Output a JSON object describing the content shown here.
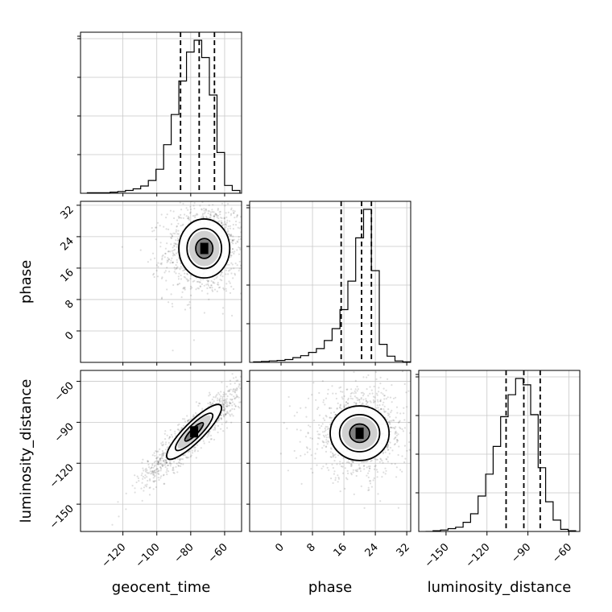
{
  "chart_data": {
    "type": "corner",
    "parameters": [
      "geocent_time",
      "phase",
      "luminosity_distance"
    ],
    "axis_labels": {
      "x": [
        "geocent_time",
        "phase",
        "luminosity_distance"
      ],
      "y": [
        "",
        "phase",
        "luminosity_distance"
      ]
    },
    "ranges": {
      "geocent_time": [
        -145,
        -50
      ],
      "phase": [
        -8,
        33
      ],
      "luminosity_distance": [
        -170,
        -52
      ]
    },
    "ticks": {
      "geocent_time": [
        -120,
        -100,
        -80,
        -60
      ],
      "phase": [
        0,
        8,
        16,
        24,
        32
      ],
      "luminosity_distance": [
        -150,
        -120,
        -90,
        -60
      ]
    },
    "quantiles": {
      "geocent_time": [
        -86,
        -75,
        -66
      ],
      "phase": [
        15.3,
        20.5,
        23.0
      ],
      "luminosity_distance": [
        -106,
        -93,
        -81
      ]
    },
    "histograms": {
      "geocent_time": {
        "bin_edges": [
          -141,
          -136.5,
          -132,
          -127.5,
          -123,
          -118.5,
          -114,
          -109.5,
          -105,
          -100.5,
          -96,
          -91.5,
          -87,
          -82.5,
          -78,
          -73.5,
          -69,
          -64.5,
          -60,
          -55.5,
          -51
        ],
        "counts": [
          1,
          1,
          1,
          2,
          3,
          5,
          8,
          13,
          23,
          43,
          87,
          141,
          201,
          253,
          274,
          243,
          176,
          73,
          14,
          5
        ]
      },
      "phase": {
        "bin_edges": [
          -7,
          -5,
          -3,
          -1,
          1,
          3,
          5,
          7,
          9,
          11,
          13,
          15,
          17,
          19,
          21,
          23,
          25,
          27,
          29,
          31,
          33
        ],
        "counts": [
          1,
          2,
          3,
          4,
          6,
          10,
          14,
          21,
          29,
          46,
          71,
          111,
          171,
          262,
          322,
          193,
          38,
          13,
          3,
          1
        ]
      },
      "luminosity_distance": {
        "bin_edges": [
          -165,
          -159.5,
          -154,
          -148.5,
          -143,
          -137.5,
          -132,
          -126.5,
          -121,
          -115.5,
          -110,
          -104.5,
          -99,
          -93.5,
          -88,
          -82.5,
          -77,
          -71.5,
          -66,
          -60.5,
          -55
        ],
        "counts": [
          0,
          1,
          2,
          4,
          6,
          13,
          25,
          50,
          81,
          120,
          162,
          193,
          216,
          207,
          165,
          90,
          42,
          16,
          3,
          1
        ]
      }
    },
    "scatter": [
      {
        "x": "geocent_time",
        "y": "phase",
        "center": [
          -72,
          21
        ],
        "spread": [
          12,
          6
        ],
        "correlation": 0.1
      },
      {
        "x": "geocent_time",
        "y": "luminosity_distance",
        "center": [
          -78,
          -97
        ],
        "spread": [
          15,
          18
        ],
        "correlation": 0.92
      },
      {
        "x": "phase",
        "y": "luminosity_distance",
        "center": [
          20,
          -98
        ],
        "spread": [
          6,
          16
        ],
        "correlation": 0.0
      }
    ],
    "grid": true,
    "legend": "none"
  }
}
